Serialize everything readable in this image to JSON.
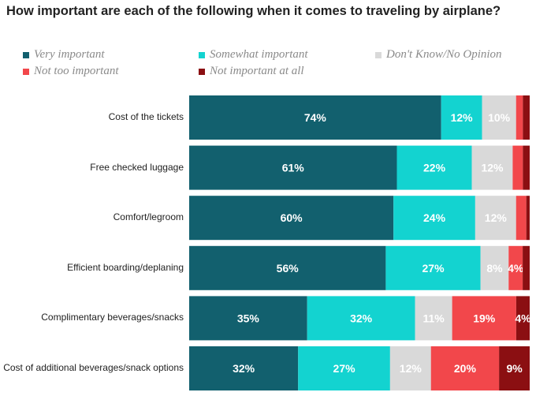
{
  "chart_data": {
    "type": "bar",
    "orientation": "horizontal",
    "stacked": true,
    "title": "How important are each of the following when it comes to traveling by airplane?",
    "xlabel": "",
    "ylabel": "",
    "xlim": [
      0,
      100
    ],
    "grid": false,
    "legend_position": "top",
    "categories": [
      "Cost of the tickets",
      "Free checked luggage",
      "Comfort/legroom",
      "Efficient boarding/deplaning",
      "Complimentary beverages/snacks",
      "Cost of additional beverages/snack options"
    ],
    "series": [
      {
        "name": "Very important",
        "color": "#12606e",
        "values": [
          74,
          61,
          60,
          56,
          35,
          32
        ],
        "labels": [
          "74%",
          "61%",
          "60%",
          "56%",
          "35%",
          "32%"
        ]
      },
      {
        "name": "Somewhat important",
        "color": "#13d3d0",
        "values": [
          12,
          22,
          24,
          27,
          32,
          27
        ],
        "labels": [
          "12%",
          "22%",
          "24%",
          "27%",
          "32%",
          "27%"
        ]
      },
      {
        "name": "Don't Know/No Opinion",
        "color": "#d9d9d9",
        "values": [
          10,
          12,
          12,
          8,
          11,
          12
        ],
        "labels": [
          "10%",
          "12%",
          "12%",
          "8%",
          "11%",
          "12%"
        ]
      },
      {
        "name": "Not too important",
        "color": "#f2474b",
        "values": [
          2,
          3,
          3,
          4,
          19,
          20
        ],
        "labels": [
          "",
          "",
          "",
          "4%",
          "19%",
          "20%"
        ]
      },
      {
        "name": "Not important at all",
        "color": "#8b0f12",
        "values": [
          2,
          2,
          1,
          2,
          4,
          9
        ],
        "labels": [
          "",
          "",
          "",
          "",
          "4%",
          "9%"
        ]
      }
    ]
  }
}
